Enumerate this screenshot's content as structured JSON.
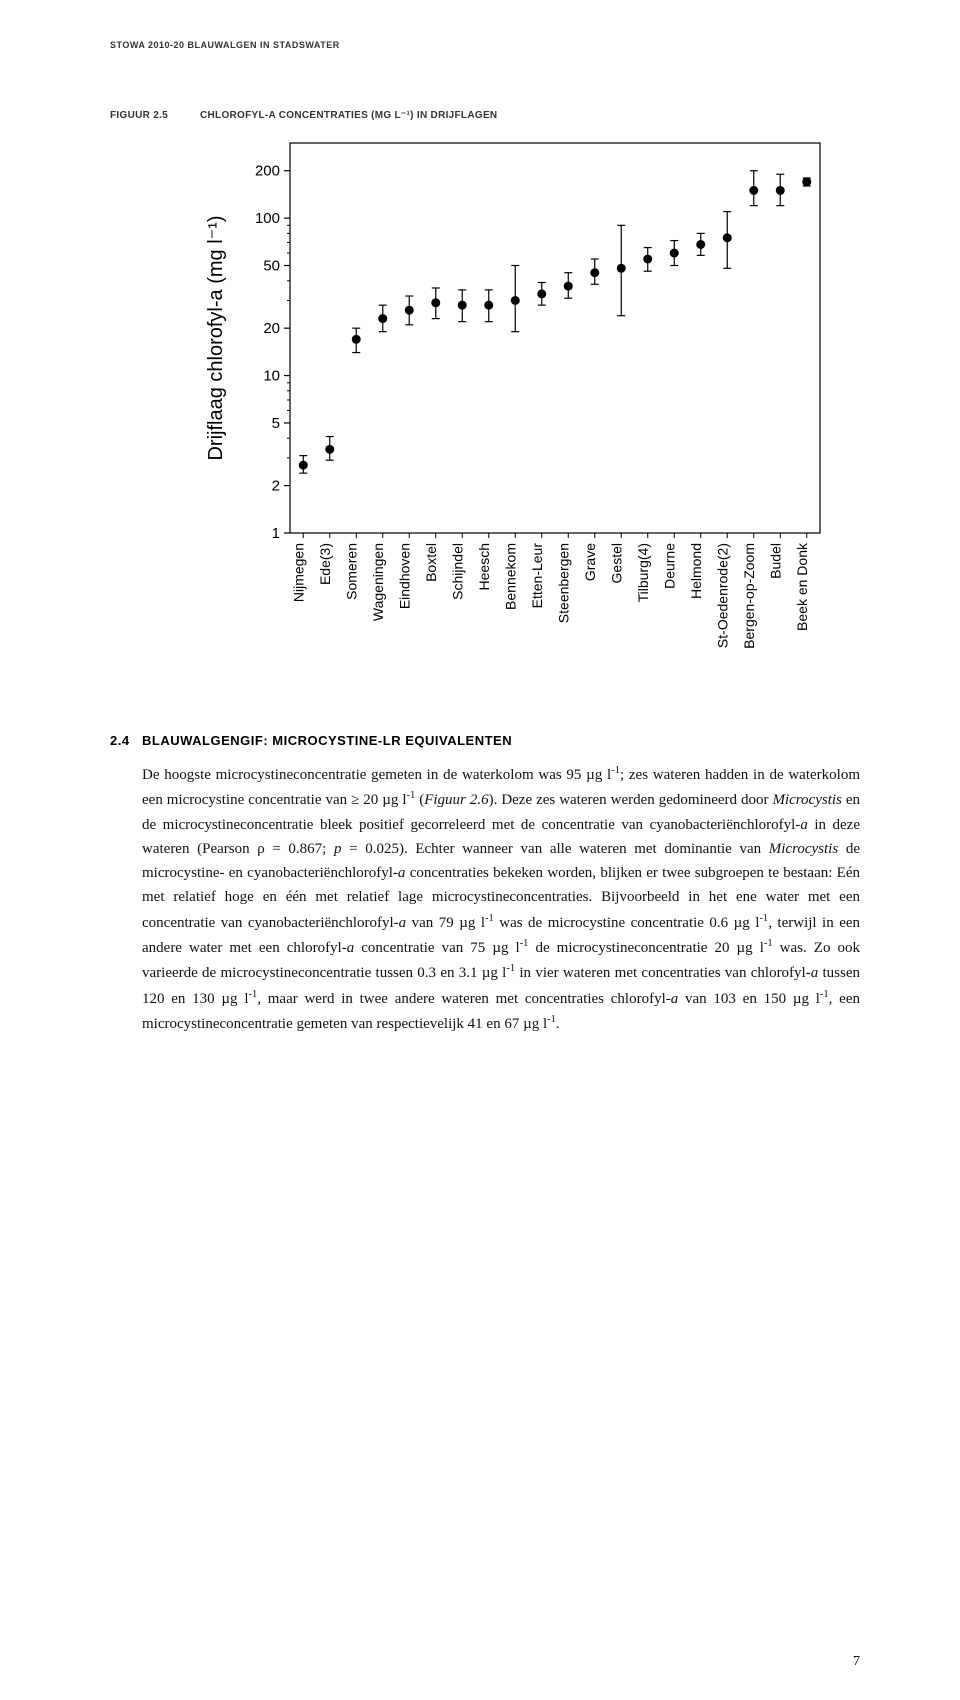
{
  "running_head": "STOWA 2010-20 BLAUWALGEN IN STADSWATER",
  "figure": {
    "label": "FIGUUR 2.5",
    "title": "CHLOROFYL-A CONCENTRATIES (MG L⁻¹) IN DRIJFLAGEN",
    "type": "scatter-errorbar-logscale",
    "ylabel": "Drijflaag chlorofyl-a (mg l⁻¹)",
    "y_ticks": [
      1,
      2,
      5,
      10,
      20,
      50,
      100,
      200
    ],
    "y_minor_ticks": [
      3,
      4,
      6,
      7,
      8,
      9,
      30,
      40,
      60,
      70,
      80,
      90
    ],
    "ylim": [
      1,
      300
    ],
    "categories": [
      "Nijmegen",
      "Ede(3)",
      "Someren",
      "Wageningen",
      "Eindhoven",
      "Boxtel",
      "Schijndel",
      "Heesch",
      "Bennekom",
      "Etten-Leur",
      "Steenbergen",
      "Grave",
      "Gestel",
      "Tilburg(4)",
      "Deurne",
      "Helmond",
      "St-Oedenrode(2)",
      "Bergen-op-Zoom",
      "Budel",
      "Beek en Donk"
    ],
    "points": [
      {
        "y": 2.7,
        "lo": 2.4,
        "hi": 3.1
      },
      {
        "y": 3.4,
        "lo": 2.9,
        "hi": 4.1
      },
      {
        "y": 17,
        "lo": 14,
        "hi": 20
      },
      {
        "y": 23,
        "lo": 19,
        "hi": 28
      },
      {
        "y": 26,
        "lo": 21,
        "hi": 32
      },
      {
        "y": 29,
        "lo": 23,
        "hi": 36
      },
      {
        "y": 28,
        "lo": 22,
        "hi": 35
      },
      {
        "y": 28,
        "lo": 22,
        "hi": 35
      },
      {
        "y": 30,
        "lo": 19,
        "hi": 50
      },
      {
        "y": 33,
        "lo": 28,
        "hi": 39
      },
      {
        "y": 37,
        "lo": 31,
        "hi": 45
      },
      {
        "y": 45,
        "lo": 38,
        "hi": 55
      },
      {
        "y": 48,
        "lo": 24,
        "hi": 90
      },
      {
        "y": 55,
        "lo": 46,
        "hi": 65
      },
      {
        "y": 60,
        "lo": 50,
        "hi": 72
      },
      {
        "y": 68,
        "lo": 58,
        "hi": 80
      },
      {
        "y": 75,
        "lo": 48,
        "hi": 110
      },
      {
        "y": 150,
        "lo": 120,
        "hi": 200
      },
      {
        "y": 150,
        "lo": 120,
        "hi": 190
      },
      {
        "y": 170,
        "lo": 160,
        "hi": 180
      }
    ],
    "marker_color": "#000000",
    "marker_radius": 4.5,
    "error_color": "#000000",
    "error_cap_width": 8,
    "border_color": "#000000",
    "bg_color": "#ffffff",
    "tick_font_size": 15,
    "xlabel_font_size": 14,
    "ylabel_font_size": 20
  },
  "section": {
    "number": "2.4",
    "title": "BLAUWALGENGIF: MICROCYSTINE-LR EQUIVALENTEN"
  },
  "body_html": "De hoogste microcystineconcentratie gemeten in de waterkolom was 95 µg l<sup>-1</sup>; zes wateren hadden in de waterkolom een microcystine concentratie van ≥ 20 µg l<sup>-1</sup> (<em>Figuur 2.6</em>). Deze zes wateren werden gedomineerd door <em>Microcystis</em> en de microcystineconcentratie bleek positief gecorreleerd met de concentratie van cyanobacteriënchlorofyl-<em>a</em> in deze wateren (Pearson ρ = 0.867; <em>p</em> = 0.025). Echter wanneer van alle wateren met dominantie van <em>Microcystis</em> de microcystine- en cyanobacteriënchlorofyl-<em>a</em> concentraties bekeken worden, blijken er twee subgroepen te bestaan: Eén met relatief hoge en één met relatief lage microcystineconcentraties. Bijvoorbeeld in het ene water met een concentratie van cyanobacteriënchlorofyl-<em>a</em> van 79 µg l<sup>-1</sup> was de microcystine concentratie 0.6 µg l<sup>-1</sup>, terwijl in een andere water met een chlorofyl-<em>a</em> concentratie van 75 µg l<sup>-1</sup> de microcystineconcentratie 20 µg l<sup>-1</sup> was. Zo ook varieerde de microcystineconcentratie tussen 0.3 en 3.1 µg l<sup>-1</sup>  in vier wateren met concentraties van chlorofyl-<em>a</em> tussen 120 en 130 µg l<sup>-1</sup>, maar werd in twee andere wateren met concentraties chlorofyl-<em>a</em> van 103 en 150  µg l<sup>-1</sup>, een microcystineconcentratie gemeten van respectievelijk 41 en 67 µg l<sup>-1</sup>.",
  "page_number": "7"
}
